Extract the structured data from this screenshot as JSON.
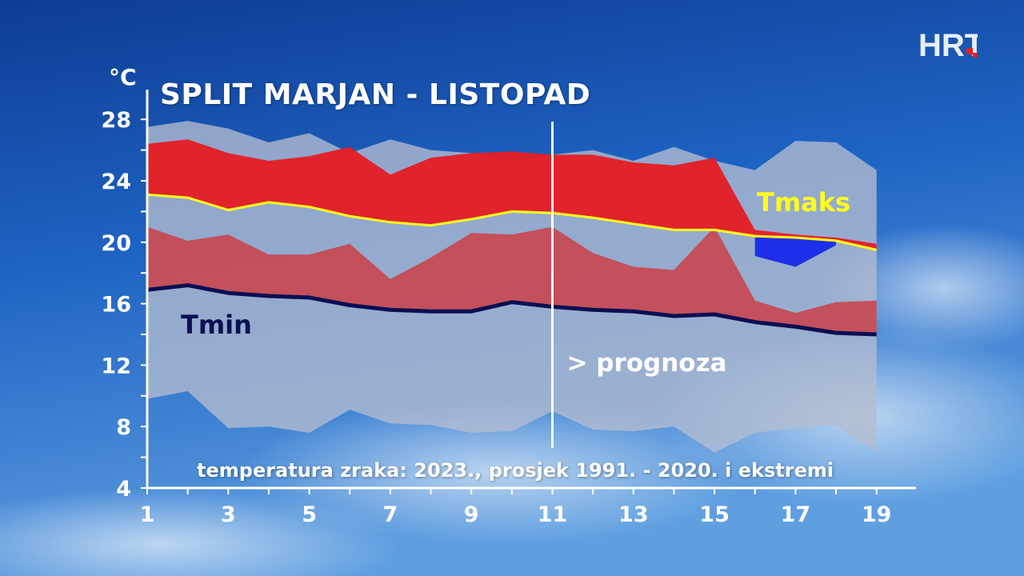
{
  "logo": {
    "text": "HRT"
  },
  "chart_data": {
    "type": "area",
    "title": "SPLIT MARJAN - LISTOPAD",
    "ylabel": "°C",
    "caption": "temperatura zraka: 2023., prosjek 1991. - 2020. i ekstremi",
    "forecast_label": "> prognoza",
    "forecast_start_day": 11,
    "x": [
      1,
      2,
      3,
      4,
      5,
      6,
      7,
      8,
      9,
      10,
      11,
      12,
      13,
      14,
      15,
      16,
      17,
      18,
      19
    ],
    "x_ticks": [
      1,
      3,
      5,
      7,
      9,
      11,
      13,
      15,
      17,
      19
    ],
    "y_ticks": [
      4,
      8,
      12,
      16,
      20,
      24,
      28
    ],
    "ylim": [
      4,
      29
    ],
    "xlim": [
      1,
      19.5
    ],
    "series": [
      {
        "name": "Tmaks",
        "role": "avg_max_line",
        "color": "#ffff1a",
        "values": [
          23.1,
          22.9,
          22.1,
          22.6,
          22.3,
          21.7,
          21.3,
          21.1,
          21.5,
          22.0,
          21.9,
          21.6,
          21.2,
          20.8,
          20.8,
          20.4,
          20.3,
          20.1,
          19.5
        ]
      },
      {
        "name": "Tmin",
        "role": "avg_min_line",
        "color": "#0a0f52",
        "values": [
          16.9,
          17.2,
          16.7,
          16.5,
          16.4,
          15.9,
          15.6,
          15.5,
          15.5,
          16.1,
          15.8,
          15.6,
          15.5,
          15.2,
          15.3,
          14.8,
          14.5,
          14.1,
          14.0
        ]
      }
    ],
    "bands": [
      {
        "role": "record_range",
        "color": "#b4bccf",
        "upper": [
          27.5,
          27.9,
          27.4,
          26.5,
          27.1,
          25.8,
          26.7,
          26.0,
          25.8,
          25.2,
          25.7,
          26.0,
          25.3,
          26.2,
          25.3,
          24.7,
          26.6,
          26.5,
          24.7
        ],
        "lower": [
          9.8,
          10.3,
          7.9,
          8.0,
          7.6,
          9.1,
          8.2,
          8.1,
          7.6,
          7.7,
          9.0,
          7.8,
          7.7,
          8.0,
          6.3,
          7.6,
          7.9,
          8.1,
          6.3
        ]
      },
      {
        "role": "tmax_2023",
        "color": "#e31f26",
        "upper": [
          26.4,
          26.7,
          25.8,
          25.3,
          25.6,
          26.2,
          24.4,
          25.5,
          25.8,
          25.9,
          25.7,
          25.7,
          25.2,
          25.0,
          25.5,
          20.8,
          20.5,
          20.3,
          19.9
        ],
        "lower": [
          23.1,
          22.9,
          22.1,
          22.6,
          22.3,
          21.7,
          21.3,
          21.1,
          21.5,
          22.0,
          21.9,
          21.6,
          21.2,
          20.8,
          20.8,
          20.4,
          20.3,
          20.1,
          19.5
        ]
      },
      {
        "role": "tmin_2023",
        "color": "#c8464f",
        "upper": [
          21.0,
          20.1,
          20.5,
          19.2,
          19.2,
          19.9,
          17.6,
          19.0,
          20.6,
          20.5,
          21.0,
          19.3,
          18.4,
          18.2,
          21.0,
          16.2,
          15.4,
          16.1,
          16.2
        ],
        "lower": [
          16.9,
          17.2,
          16.7,
          16.5,
          16.4,
          15.9,
          15.6,
          15.5,
          15.5,
          16.1,
          15.8,
          15.6,
          15.5,
          15.2,
          15.3,
          14.8,
          14.5,
          14.1,
          14.0
        ]
      },
      {
        "role": "below_avg_max",
        "color": "#1f2ee8",
        "x": [
          16,
          17,
          18
        ],
        "upper": [
          20.4,
          20.3,
          20.1
        ],
        "lower": [
          19.1,
          18.4,
          19.8
        ]
      }
    ],
    "series_labels": [
      {
        "text": "Tmaks",
        "color": "#ffff1a"
      },
      {
        "text": "Tmin",
        "color": "#0a0f52"
      }
    ]
  }
}
